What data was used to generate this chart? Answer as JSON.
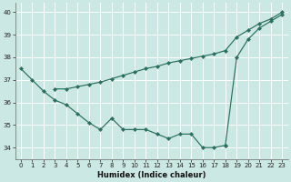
{
  "xlabel": "Humidex (Indice chaleur)",
  "bg_color": "#cce8e4",
  "grid_color": "#ffffff",
  "line_color": "#2a6e5e",
  "ylim": [
    33.5,
    40.4
  ],
  "xlim": [
    -0.5,
    23.5
  ],
  "yticks": [
    34,
    35,
    36,
    37,
    38,
    39,
    40
  ],
  "xticks": [
    0,
    1,
    2,
    3,
    4,
    5,
    6,
    7,
    8,
    9,
    10,
    11,
    12,
    13,
    14,
    15,
    16,
    17,
    18,
    19,
    20,
    21,
    22,
    23
  ],
  "curve1_x": [
    0,
    1,
    2,
    3,
    4,
    5,
    6,
    7,
    8,
    9,
    10,
    11,
    12,
    13,
    14,
    15,
    16,
    17,
    18
  ],
  "curve1_y": [
    37.5,
    37.0,
    36.5,
    36.1,
    35.9,
    35.5,
    35.1,
    34.8,
    35.3,
    34.8,
    34.8,
    34.8,
    34.6,
    34.4,
    34.6,
    34.6,
    34.0,
    34.0,
    34.1
  ],
  "curve2_x": [
    18,
    19,
    20,
    21,
    22,
    23
  ],
  "curve2_y": [
    34.1,
    38.0,
    38.8,
    39.3,
    39.6,
    39.9
  ],
  "curve3_x": [
    3,
    4,
    5,
    6,
    7,
    8,
    9,
    10,
    11,
    12,
    13,
    14,
    15,
    16,
    17,
    18,
    19,
    20,
    21,
    22,
    23
  ],
  "curve3_y": [
    36.6,
    36.6,
    36.7,
    36.8,
    36.9,
    37.05,
    37.2,
    37.35,
    37.5,
    37.6,
    37.75,
    37.85,
    37.95,
    38.05,
    38.15,
    38.3,
    38.9,
    39.2,
    39.5,
    39.7,
    40.0
  ]
}
